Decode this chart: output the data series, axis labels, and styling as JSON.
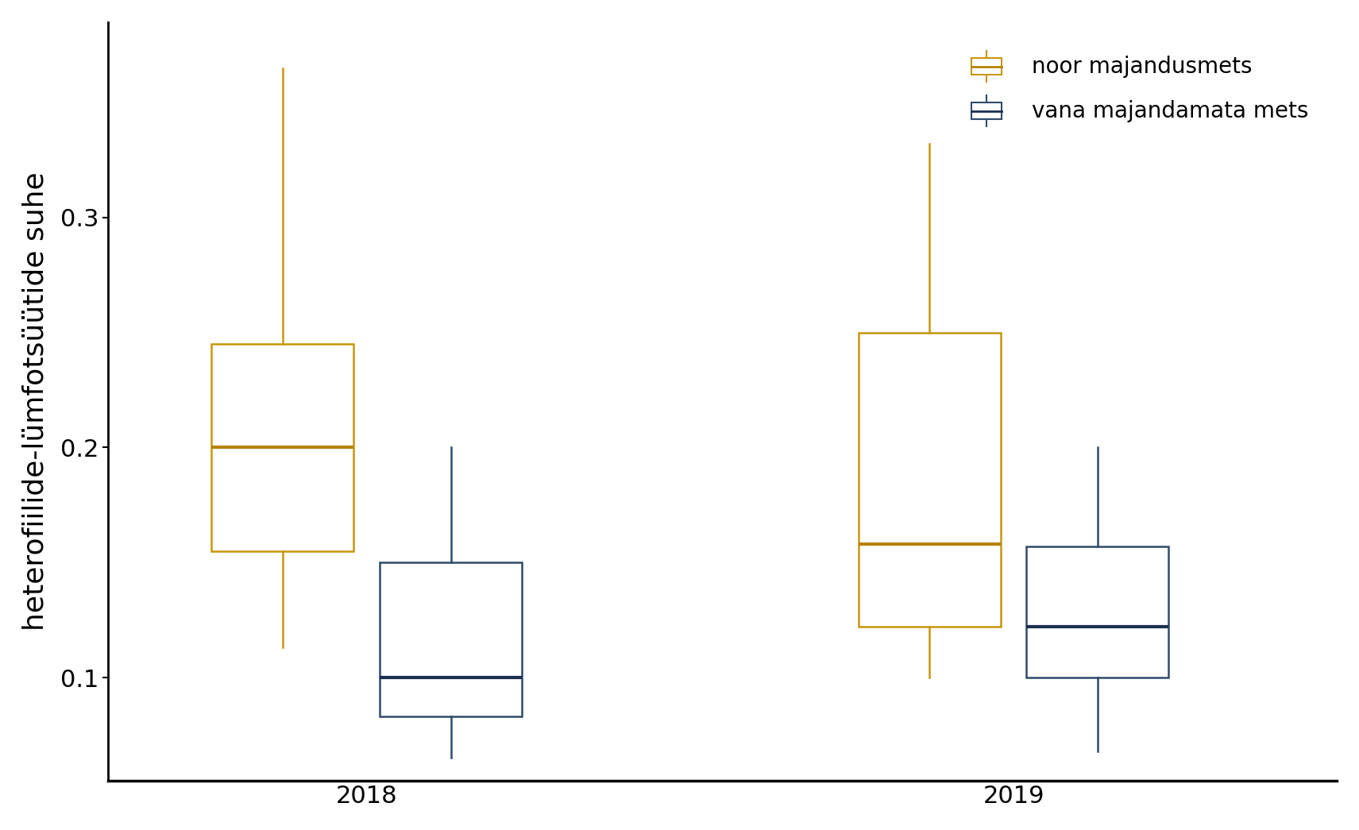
{
  "title": "",
  "ylabel": "heterofiilide-lümfotsüütide suhe",
  "xlabel": "",
  "background_color": "#ffffff",
  "ylim": [
    0.055,
    0.385
  ],
  "yticks": [
    0.1,
    0.2,
    0.3
  ],
  "groups": [
    "2018",
    "2019"
  ],
  "series": {
    "noor majandusmets": {
      "color": "#C8960C",
      "median_color": "#B8820A",
      "boxes": [
        {
          "q1": 0.155,
          "median": 0.2,
          "q3": 0.245,
          "whisker_low": 0.113,
          "whisker_high": 0.365
        },
        {
          "q1": 0.122,
          "median": 0.158,
          "q3": 0.25,
          "whisker_low": 0.1,
          "whisker_high": 0.332
        }
      ]
    },
    "vana majandamata mets": {
      "color": "#2E4A6B",
      "median_color": "#1B3050",
      "boxes": [
        {
          "q1": 0.083,
          "median": 0.1,
          "q3": 0.15,
          "whisker_low": 0.065,
          "whisker_high": 0.2
        },
        {
          "q1": 0.1,
          "median": 0.122,
          "q3": 0.157,
          "whisker_low": 0.068,
          "whisker_high": 0.2
        }
      ]
    }
  },
  "box_width": 0.22,
  "group_centers": [
    1.0,
    2.0
  ],
  "offsets": [
    -0.13,
    0.13
  ],
  "legend_loc": "upper right",
  "ylabel_fontsize": 26,
  "tick_fontsize": 22,
  "legend_fontsize": 20,
  "linewidth": 1.8,
  "median_linewidth": 3.0
}
